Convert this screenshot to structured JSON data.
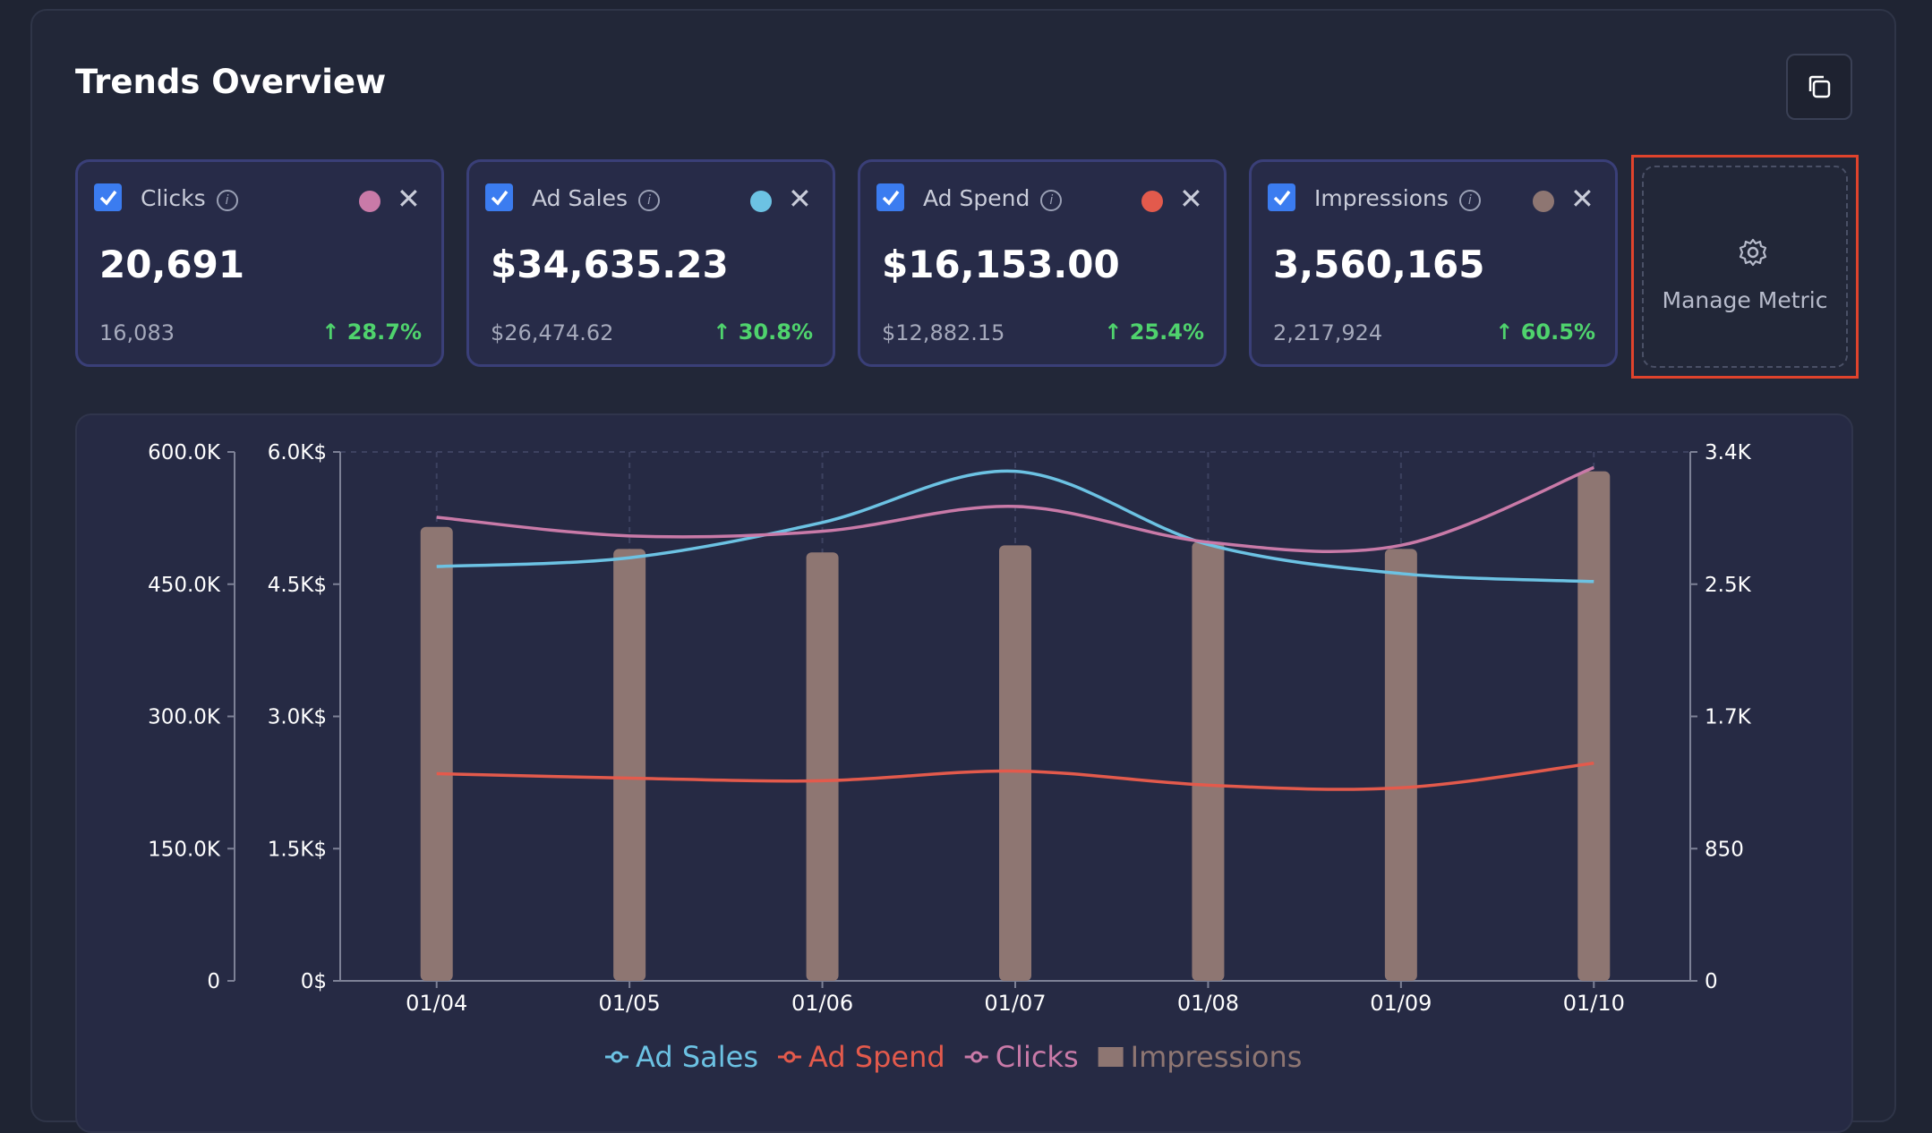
{
  "title": "Trends Overview",
  "copy_icon": "copy-icon",
  "cards": [
    {
      "label": "Clicks",
      "color": "#c97aa8",
      "value": "20,691",
      "previous": "16,083",
      "change": "↑ 28.7%"
    },
    {
      "label": "Ad Sales",
      "color": "#6cc2e3",
      "value": "$34,635.23",
      "previous": "$26,474.62",
      "change": "↑ 30.8%"
    },
    {
      "label": "Ad Spend",
      "color": "#e35a4c",
      "value": "$16,153.00",
      "previous": "$12,882.15",
      "change": "↑ 25.4%"
    },
    {
      "label": "Impressions",
      "color": "#8e7672",
      "value": "3,560,165",
      "previous": "2,217,924",
      "change": "↑ 60.5%"
    }
  ],
  "manage_metric": {
    "label": "Manage Metric",
    "icon": "gear-icon"
  },
  "chart_data": {
    "type": "bar",
    "categories": [
      "01/04",
      "01/05",
      "01/06",
      "01/07",
      "01/08",
      "01/09",
      "01/10"
    ],
    "axes": {
      "left_outer": {
        "ticks": [
          "0",
          "150.0K",
          "300.0K",
          "450.0K",
          "600.0K"
        ],
        "range": [
          0,
          600000
        ]
      },
      "left_inner": {
        "ticks": [
          "0$",
          "1.5K$",
          "3.0K$",
          "4.5K$",
          "6.0K$"
        ],
        "range": [
          0,
          6000
        ]
      },
      "right": {
        "ticks": [
          "0",
          "850",
          "1.7K",
          "2.5K",
          "3.4K"
        ],
        "range": [
          0,
          3400
        ]
      }
    },
    "series": [
      {
        "name": "Ad Sales",
        "type": "line",
        "axis": "left_inner",
        "color": "#6cc2e3",
        "values": [
          4700,
          4800,
          5200,
          5780,
          4950,
          4620,
          4530
        ]
      },
      {
        "name": "Ad Spend",
        "type": "line",
        "axis": "left_inner",
        "color": "#e35a4c",
        "values": [
          2350,
          2300,
          2270,
          2380,
          2220,
          2190,
          2470
        ]
      },
      {
        "name": "Clicks",
        "type": "line",
        "axis": "right",
        "color": "#c97aa8",
        "values": [
          2980,
          2860,
          2890,
          3050,
          2820,
          2800,
          3300
        ]
      },
      {
        "name": "Impressions",
        "type": "bar",
        "axis": "left_outer",
        "color": "#8e7672",
        "values": [
          515000,
          490000,
          486000,
          494000,
          498000,
          490000,
          578000
        ]
      }
    ],
    "legend": [
      "Ad Sales",
      "Ad Spend",
      "Clicks",
      "Impressions"
    ],
    "legend_position": "bottom",
    "grid": true
  }
}
